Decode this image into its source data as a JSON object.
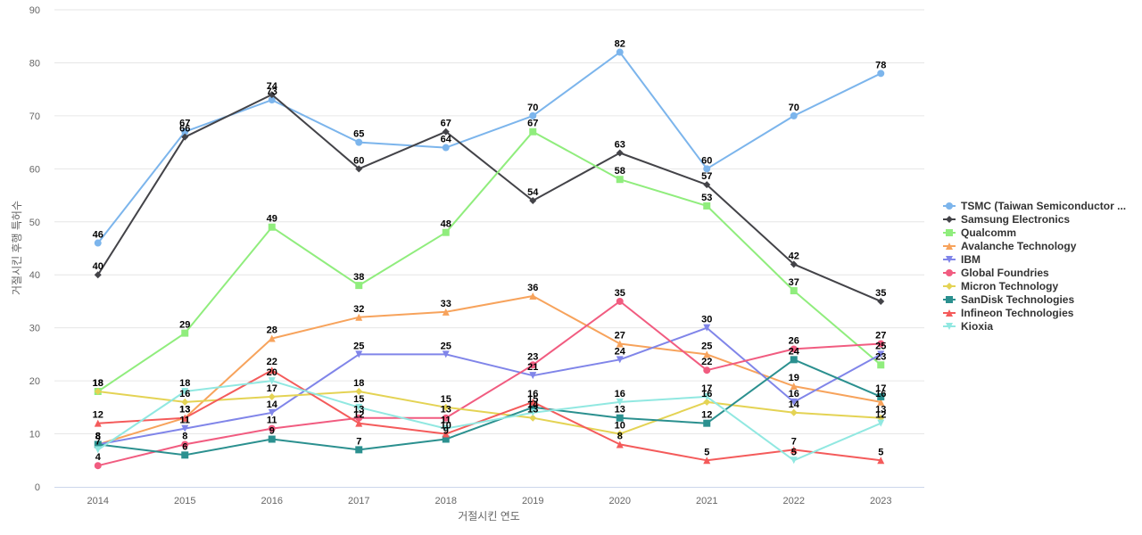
{
  "chart_data": {
    "type": "line",
    "title": "",
    "xlabel": "거절시킨 연도",
    "ylabel": "거절시킨 후행 특허수",
    "ylim": [
      0,
      90
    ],
    "yticks": [
      0,
      10,
      20,
      30,
      40,
      50,
      60,
      70,
      80,
      90
    ],
    "x": [
      "2014",
      "2015",
      "2016",
      "2017",
      "2018",
      "2019",
      "2020",
      "2021",
      "2022",
      "2023"
    ],
    "grid": true,
    "legend_position": "right",
    "series": [
      {
        "name": "TSMC (Taiwan Semiconductor ...",
        "color": "#7cb5ec",
        "marker": "circle",
        "values": [
          46,
          67,
          73,
          65,
          64,
          70,
          82,
          60,
          70,
          78
        ]
      },
      {
        "name": "Samsung Electronics",
        "color": "#434348",
        "marker": "diamond",
        "values": [
          40,
          66,
          74,
          60,
          67,
          54,
          63,
          57,
          42,
          35
        ]
      },
      {
        "name": "Qualcomm",
        "color": "#90ed7d",
        "marker": "square",
        "values": [
          18,
          29,
          49,
          38,
          48,
          67,
          58,
          53,
          37,
          23
        ]
      },
      {
        "name": "Avalanche Technology",
        "color": "#f7a35c",
        "marker": "triangle",
        "values": [
          8,
          13,
          28,
          32,
          33,
          36,
          27,
          25,
          19,
          16
        ]
      },
      {
        "name": "IBM",
        "color": "#8085e9",
        "marker": "triangle-down",
        "values": [
          8,
          11,
          14,
          25,
          25,
          21,
          24,
          30,
          16,
          25
        ]
      },
      {
        "name": "Global Foundries",
        "color": "#f15c80",
        "marker": "circle",
        "values": [
          4,
          8,
          11,
          13,
          13,
          23,
          35,
          22,
          26,
          27
        ]
      },
      {
        "name": "Micron Technology",
        "color": "#e4d354",
        "marker": "diamond",
        "values": [
          18,
          16,
          17,
          18,
          15,
          13,
          10,
          16,
          14,
          13
        ]
      },
      {
        "name": "SanDisk Technologies",
        "color": "#2b908f",
        "marker": "square",
        "values": [
          8,
          6,
          9,
          7,
          9,
          15,
          13,
          12,
          24,
          17
        ]
      },
      {
        "name": "Infineon Technologies",
        "color": "#f45b5b",
        "marker": "triangle",
        "values": [
          12,
          13,
          22,
          12,
          10,
          16,
          8,
          5,
          7,
          5
        ]
      },
      {
        "name": "Kioxia",
        "color": "#91e8e1",
        "marker": "triangle-down",
        "values": [
          7,
          18,
          20,
          15,
          11,
          14,
          16,
          17,
          5,
          12
        ]
      }
    ]
  }
}
